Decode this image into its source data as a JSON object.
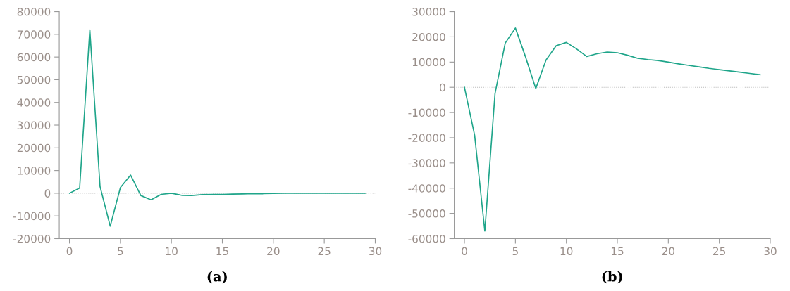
{
  "chart_data": [
    {
      "type": "line",
      "xlabel": "(a)",
      "x": [
        0,
        1,
        2,
        3,
        4,
        5,
        6,
        7,
        8,
        9,
        10,
        11,
        12,
        13,
        14,
        15,
        16,
        17,
        18,
        19,
        20,
        21,
        22,
        23,
        24,
        25,
        26,
        27,
        28,
        29
      ],
      "series": [
        {
          "color": "#1fa58a",
          "values": [
            0,
            2300,
            72000,
            3000,
            -14500,
            2500,
            8000,
            -1000,
            -2900,
            -500,
            0,
            -900,
            -1000,
            -600,
            -500,
            -500,
            -400,
            -300,
            -200,
            -200,
            -100,
            0,
            0,
            0,
            0,
            0,
            0,
            0,
            0,
            0
          ]
        }
      ],
      "xlim": [
        -1,
        30
      ],
      "xticks": [
        0,
        5,
        10,
        15,
        20,
        25,
        30
      ],
      "ylim": [
        -20000,
        80000
      ],
      "yticks": [
        -20000,
        -10000,
        0,
        10000,
        20000,
        30000,
        40000,
        50000,
        60000,
        70000,
        80000
      ],
      "ref_lines": [
        {
          "axis": "y",
          "value": 0,
          "color": "#bbbbbb",
          "line_style": "dotted"
        }
      ],
      "grid": false,
      "legend": false
    },
    {
      "type": "line",
      "xlabel": "(b)",
      "x": [
        0,
        1,
        2,
        3,
        4,
        5,
        6,
        7,
        8,
        9,
        10,
        11,
        12,
        13,
        14,
        15,
        16,
        17,
        18,
        19,
        20,
        21,
        22,
        23,
        24,
        25,
        26,
        27,
        28,
        29
      ],
      "series": [
        {
          "color": "#1fa58a",
          "values": [
            0,
            -19000,
            -57000,
            -2500,
            17500,
            23500,
            12000,
            -500,
            10800,
            16500,
            17800,
            15200,
            12200,
            13300,
            14000,
            13700,
            12700,
            11500,
            11000,
            10600,
            10000,
            9300,
            8700,
            8100,
            7500,
            7000,
            6500,
            6000,
            5500,
            5000
          ]
        }
      ],
      "xlim": [
        -1,
        30
      ],
      "xticks": [
        0,
        5,
        10,
        15,
        20,
        25,
        30
      ],
      "ylim": [
        -60000,
        30000
      ],
      "yticks": [
        -60000,
        -50000,
        -40000,
        -30000,
        -20000,
        -10000,
        0,
        10000,
        20000,
        30000
      ],
      "ref_lines": [
        {
          "axis": "y",
          "value": 0,
          "color": "#bbbbbb",
          "line_style": "dotted"
        }
      ],
      "grid": false,
      "legend": false
    }
  ]
}
